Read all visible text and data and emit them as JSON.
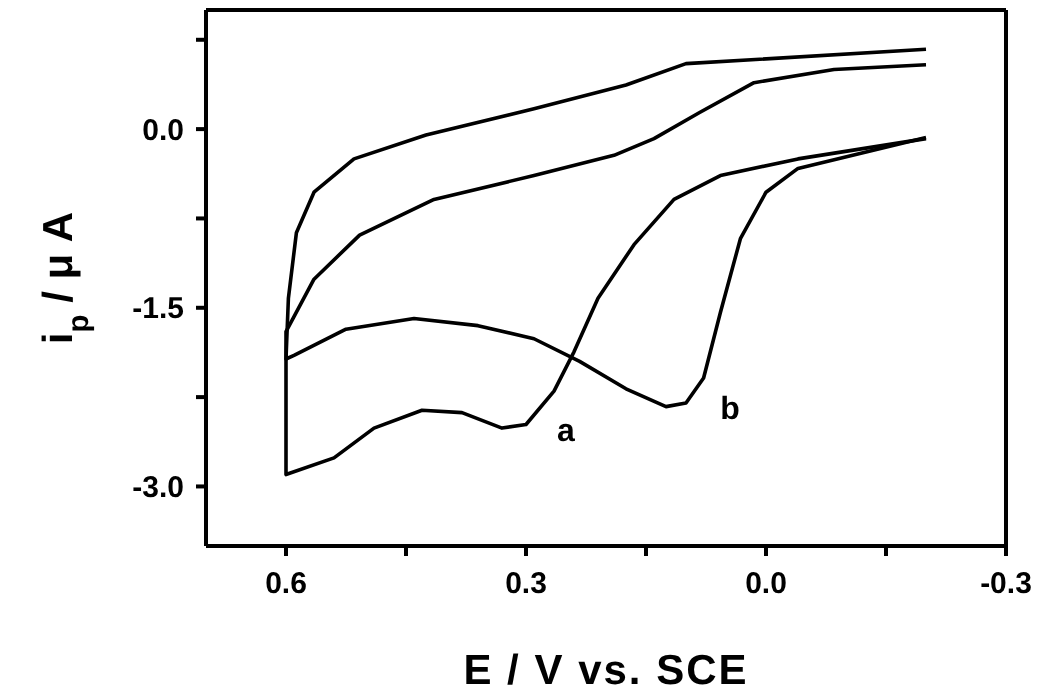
{
  "chart_data": {
    "type": "line",
    "xlabel": "E  / V vs. SCE",
    "ylabel": "i$_{p}$ / μ A",
    "xlim": [
      0.7,
      -0.3
    ],
    "ylim": [
      -3.5,
      1.0
    ],
    "xticks": [
      0.6,
      {
        "value": 0.45,
        "label": null
      },
      0.3,
      {
        "value": 0.15,
        "label": null
      },
      {
        "value": 0.0,
        "label": "0.0"
      },
      {
        "value": -0.15,
        "label": null
      },
      -0.3
    ],
    "yticks": [
      {
        "value": 0.75,
        "label": null
      },
      {
        "value": 0.0,
        "label": "0.0"
      },
      {
        "value": -0.75,
        "label": null
      },
      -1.5,
      {
        "value": -2.25,
        "label": null
      },
      {
        "value": -3.0,
        "label": "-3.0"
      }
    ],
    "marker": "none",
    "line_style": "solid",
    "series": [
      {
        "name": "a",
        "color": "#000000",
        "x": [
          -0.2,
          -0.04,
          0.057,
          0.115,
          0.165,
          0.21,
          0.24,
          0.265,
          0.3,
          0.33,
          0.38,
          0.43,
          0.49,
          0.54,
          0.6,
          0.6,
          0.597,
          0.587,
          0.565,
          0.515,
          0.425,
          0.29,
          0.175,
          0.1,
          -0.2
        ],
        "values": [
          -0.08,
          -0.25,
          -0.39,
          -0.59,
          -0.97,
          -1.42,
          -1.87,
          -2.2,
          -2.48,
          -2.51,
          -2.38,
          -2.36,
          -2.51,
          -2.76,
          -2.9,
          -1.93,
          -1.42,
          -0.87,
          -0.53,
          -0.25,
          -0.05,
          0.17,
          0.37,
          0.55,
          0.67
        ]
      },
      {
        "name": "b",
        "color": "#000000",
        "x": [
          -0.2,
          -0.04,
          0.0,
          0.032,
          0.057,
          0.078,
          0.1,
          0.125,
          0.175,
          0.233,
          0.29,
          0.36,
          0.44,
          0.525,
          0.59,
          0.6,
          0.6,
          0.565,
          0.508,
          0.415,
          0.29,
          0.19,
          0.14,
          0.083,
          0.015,
          -0.085,
          -0.2
        ],
        "values": [
          -0.07,
          -0.33,
          -0.53,
          -0.92,
          -1.54,
          -2.09,
          -2.3,
          -2.33,
          -2.18,
          -1.95,
          -1.76,
          -1.65,
          -1.59,
          -1.68,
          -1.9,
          -1.93,
          -1.7,
          -1.26,
          -0.89,
          -0.59,
          -0.39,
          -0.22,
          -0.08,
          0.14,
          0.39,
          0.5,
          0.54
        ]
      }
    ]
  }
}
